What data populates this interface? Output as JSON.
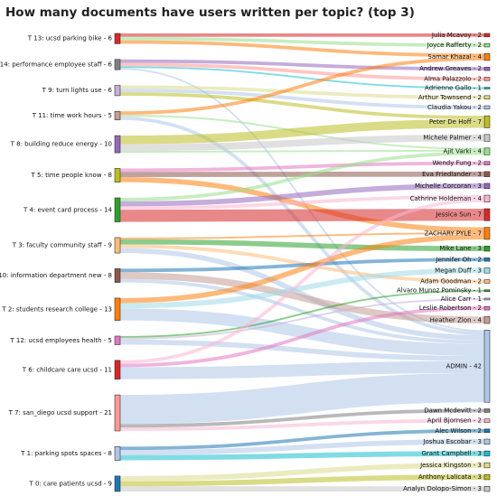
{
  "chart_data": {
    "type": "sankey",
    "title": "How many documents have users written per topic? (top 3)",
    "topics": [
      {
        "label": "T 13: ucsd parking bike",
        "value": 6,
        "color": "#d62728"
      },
      {
        "label": "T 14: performance employee staff",
        "value": 6,
        "color": "#7f7f7f"
      },
      {
        "label": "T 9: turn lights use",
        "value": 6,
        "color": "#c5b0d5"
      },
      {
        "label": "T 11: time work hours",
        "value": 5,
        "color": "#c49c94"
      },
      {
        "label": "T 8: building reduce energy",
        "value": 10,
        "color": "#9467bd"
      },
      {
        "label": "T 5: time people know",
        "value": 8,
        "color": "#bcbd22"
      },
      {
        "label": "T 4: event card process",
        "value": 14,
        "color": "#2ca02c"
      },
      {
        "label": "T 3: faculty community staff",
        "value": 9,
        "color": "#ffbb78"
      },
      {
        "label": "T 10: information department new",
        "value": 8,
        "color": "#8c564b"
      },
      {
        "label": "T 2: students research college",
        "value": 13,
        "color": "#ff7f0e"
      },
      {
        "label": "T 12: ucsd employees health",
        "value": 5,
        "color": "#e377c2"
      },
      {
        "label": "T 6: childcare care ucsd",
        "value": 11,
        "color": "#d62728"
      },
      {
        "label": "T 7: san_diego ucsd support",
        "value": 21,
        "color": "#ff9896"
      },
      {
        "label": "T 1: parking spots spaces",
        "value": 8,
        "color": "#aec7e8"
      },
      {
        "label": "T 0: care patients ucsd",
        "value": 9,
        "color": "#1f77b4"
      }
    ],
    "users": [
      {
        "label": "Julia Mcavoy",
        "value": 2,
        "color": "#d62728"
      },
      {
        "label": "Joyce Rafferty",
        "value": 2,
        "color": "#98df8a"
      },
      {
        "label": "Samar Khazal",
        "value": 4,
        "color": "#ff7f0e"
      },
      {
        "label": "Andrew Greaves",
        "value": 2,
        "color": "#9467bd"
      },
      {
        "label": "Alma Palazzolo",
        "value": 2,
        "color": "#ff9896"
      },
      {
        "label": "Adrienne Gallo",
        "value": 1,
        "color": "#17becf"
      },
      {
        "label": "Arthur Townsend",
        "value": 2,
        "color": "#dbdb8d"
      },
      {
        "label": "Claudia Yakou",
        "value": 2,
        "color": "#aec7e8"
      },
      {
        "label": "Peter De Hoff",
        "value": 7,
        "color": "#bcbd22"
      },
      {
        "label": "Michele Palmer",
        "value": 4,
        "color": "#c7c7c7"
      },
      {
        "label": "Ajit Varki",
        "value": 4,
        "color": "#98df8a"
      },
      {
        "label": "Wendy Fung",
        "value": 2,
        "color": "#e377c2"
      },
      {
        "label": "Eva Friedlander",
        "value": 3,
        "color": "#8c564b"
      },
      {
        "label": "Michelle Corcoran",
        "value": 3,
        "color": "#9467bd"
      },
      {
        "label": "Cathrine Holdeman",
        "value": 4,
        "color": "#f7b6d2"
      },
      {
        "label": "Jessica Sun",
        "value": 7,
        "color": "#d62728"
      },
      {
        "label": "ZACHARY PYLE",
        "value": 7,
        "color": "#ff7f0e"
      },
      {
        "label": "Mike Lane",
        "value": 3,
        "color": "#2ca02c"
      },
      {
        "label": "Jennifer Oh",
        "value": 2,
        "color": "#1f77b4"
      },
      {
        "label": "Megan Duff",
        "value": 3,
        "color": "#9edae5"
      },
      {
        "label": "Adam Goodman",
        "value": 2,
        "color": "#ffbb78"
      },
      {
        "label": "Alvaro Munoz Pominsky",
        "value": 1,
        "color": "#2ca02c"
      },
      {
        "label": "Alice Carr",
        "value": 1,
        "color": "#c5b0d5"
      },
      {
        "label": "Leslie Robertson",
        "value": 2,
        "color": "#e377c2"
      },
      {
        "label": "Heather Zion",
        "value": 4,
        "color": "#c49c94"
      },
      {
        "label": "ADMIN",
        "value": 42,
        "color": "#aec7e8"
      },
      {
        "label": "Dawn Mcdevitt",
        "value": 2,
        "color": "#7f7f7f"
      },
      {
        "label": "April Bjornsen",
        "value": 2,
        "color": "#f7b6d2"
      },
      {
        "label": "Alec Wilson",
        "value": 2,
        "color": "#1f77b4"
      },
      {
        "label": "Joshua Escobar",
        "value": 3,
        "color": "#aec7e8"
      },
      {
        "label": "Grant Campbell",
        "value": 3,
        "color": "#17becf"
      },
      {
        "label": "Jessica Kingston",
        "value": 3,
        "color": "#dbdb8d"
      },
      {
        "label": "Anthony Lalicata",
        "value": 3,
        "color": "#bcbd22"
      },
      {
        "label": "Analyn Dolopo-Simon",
        "value": 3,
        "color": "#c7c7c7"
      }
    ],
    "links": [
      {
        "topic": "T 13: ucsd parking bike",
        "user": "Julia Mcavoy",
        "value": 2
      },
      {
        "topic": "T 13: ucsd parking bike",
        "user": "Joyce Rafferty",
        "value": 2
      },
      {
        "topic": "T 13: ucsd parking bike",
        "user": "Samar Khazal",
        "value": 2
      },
      {
        "topic": "T 14: performance employee staff",
        "user": "Andrew Greaves",
        "value": 2
      },
      {
        "topic": "T 14: performance employee staff",
        "user": "Alma Palazzolo",
        "value": 2
      },
      {
        "topic": "T 14: performance employee staff",
        "user": "Adrienne Gallo",
        "value": 1
      },
      {
        "topic": "T 14: performance employee staff",
        "user": "ADMIN",
        "value": 1
      },
      {
        "topic": "T 9: turn lights use",
        "user": "Arthur Townsend",
        "value": 2
      },
      {
        "topic": "T 9: turn lights use",
        "user": "Claudia Yakou",
        "value": 2
      },
      {
        "topic": "T 9: turn lights use",
        "user": "Peter De Hoff",
        "value": 2
      },
      {
        "topic": "T 11: time work hours",
        "user": "Samar Khazal",
        "value": 2
      },
      {
        "topic": "T 11: time work hours",
        "user": "Ajit Varki",
        "value": 1
      },
      {
        "topic": "T 11: time work hours",
        "user": "ADMIN",
        "value": 2
      },
      {
        "topic": "T 8: building reduce energy",
        "user": "Peter De Hoff",
        "value": 5
      },
      {
        "topic": "T 8: building reduce energy",
        "user": "Michele Palmer",
        "value": 4
      },
      {
        "topic": "T 8: building reduce energy",
        "user": "Ajit Varki",
        "value": 1
      },
      {
        "topic": "T 5: time people know",
        "user": "Wendy Fung",
        "value": 2
      },
      {
        "topic": "T 5: time people know",
        "user": "Eva Friedlander",
        "value": 3
      },
      {
        "topic": "T 5: time people know",
        "user": "ZACHARY PYLE",
        "value": 3
      },
      {
        "topic": "T 4: event card process",
        "user": "Ajit Varki",
        "value": 2
      },
      {
        "topic": "T 4: event card process",
        "user": "Michelle Corcoran",
        "value": 3
      },
      {
        "topic": "T 4: event card process",
        "user": "Cathrine Holdeman",
        "value": 2
      },
      {
        "topic": "T 4: event card process",
        "user": "Jessica Sun",
        "value": 7
      },
      {
        "topic": "T 3: faculty community staff",
        "user": "ZACHARY PYLE",
        "value": 1
      },
      {
        "topic": "T 3: faculty community staff",
        "user": "Mike Lane",
        "value": 3
      },
      {
        "topic": "T 3: faculty community staff",
        "user": "Adam Goodman",
        "value": 2
      },
      {
        "topic": "T 3: faculty community staff",
        "user": "ADMIN",
        "value": 3
      },
      {
        "topic": "T 10: information department new",
        "user": "Jennifer Oh",
        "value": 2
      },
      {
        "topic": "T 10: information department new",
        "user": "Heather Zion",
        "value": 4
      },
      {
        "topic": "T 10: information department new",
        "user": "ADMIN",
        "value": 2
      },
      {
        "topic": "T 2: students research college",
        "user": "ZACHARY PYLE",
        "value": 3
      },
      {
        "topic": "T 2: students research college",
        "user": "Megan Duff",
        "value": 3
      },
      {
        "topic": "T 2: students research college",
        "user": "ADMIN",
        "value": 7
      },
      {
        "topic": "T 12: ucsd employees health",
        "user": "Alvaro Munoz Pominsky",
        "value": 1
      },
      {
        "topic": "T 12: ucsd employees health",
        "user": "Alice Carr",
        "value": 1
      },
      {
        "topic": "T 12: ucsd employees health",
        "user": "ADMIN",
        "value": 3
      },
      {
        "topic": "T 6: childcare care ucsd",
        "user": "Cathrine Holdeman",
        "value": 2
      },
      {
        "topic": "T 6: childcare care ucsd",
        "user": "Leslie Robertson",
        "value": 2
      },
      {
        "topic": "T 6: childcare care ucsd",
        "user": "ADMIN",
        "value": 7
      },
      {
        "topic": "T 7: san_diego ucsd support",
        "user": "ADMIN",
        "value": 17
      },
      {
        "topic": "T 7: san_diego ucsd support",
        "user": "Dawn Mcdevitt",
        "value": 2
      },
      {
        "topic": "T 7: san_diego ucsd support",
        "user": "April Bjornsen",
        "value": 2
      },
      {
        "topic": "T 1: parking spots spaces",
        "user": "Alec Wilson",
        "value": 2
      },
      {
        "topic": "T 1: parking spots spaces",
        "user": "Joshua Escobar",
        "value": 3
      },
      {
        "topic": "T 1: parking spots spaces",
        "user": "Grant Campbell",
        "value": 3
      },
      {
        "topic": "T 0: care patients ucsd",
        "user": "Jessica Kingston",
        "value": 3
      },
      {
        "topic": "T 0: care patients ucsd",
        "user": "Anthony Lalicata",
        "value": 3
      },
      {
        "topic": "T 0: care patients ucsd",
        "user": "Analyn Dolopo-Simon",
        "value": 3
      }
    ]
  }
}
